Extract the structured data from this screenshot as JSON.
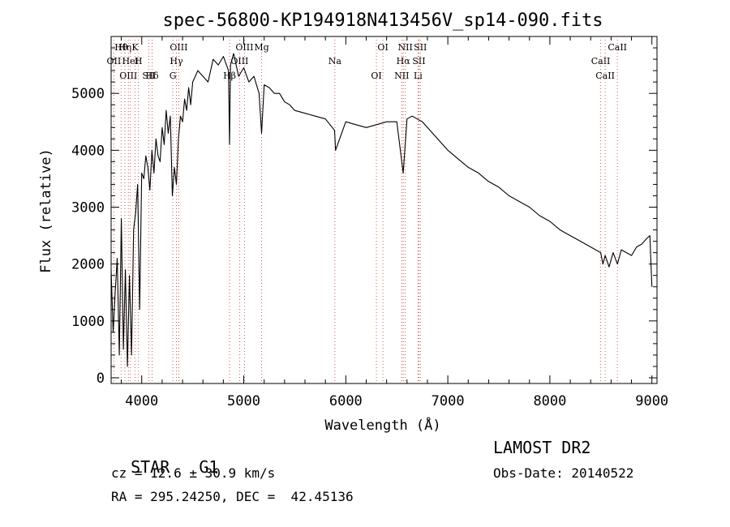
{
  "chart_data": {
    "type": "line",
    "title": "spec-56800-KP194918N413456V_sp14-090.fits",
    "xlabel": "Wavelength (Å)",
    "ylabel": "Flux (relative)",
    "xlim": [
      3700,
      9050
    ],
    "ylim": [
      -100,
      6000
    ],
    "xticks": [
      4000,
      5000,
      6000,
      7000,
      8000,
      9000
    ],
    "yticks": [
      0,
      1000,
      2000,
      3000,
      4000,
      5000
    ],
    "grid": false,
    "line_color": "#000000",
    "marker_color": "#d9534f",
    "series": [
      {
        "x": [
          3700,
          3720,
          3740,
          3760,
          3780,
          3800,
          3820,
          3840,
          3860,
          3880,
          3900,
          3920,
          3940,
          3960,
          3980,
          4000,
          4020,
          4040,
          4060,
          4080,
          4100,
          4120,
          4140,
          4160,
          4180,
          4200,
          4220,
          4240,
          4260,
          4280,
          4300,
          4320,
          4340,
          4360,
          4380,
          4400,
          4420,
          4440,
          4460,
          4480,
          4500,
          4550,
          4600,
          4650,
          4700,
          4750,
          4800,
          4850,
          4861,
          4870,
          4900,
          4950,
          5000,
          5050,
          5100,
          5150,
          5175,
          5200,
          5250,
          5300,
          5350,
          5400,
          5450,
          5500,
          5600,
          5700,
          5800,
          5890,
          5900,
          6000,
          6100,
          6200,
          6300,
          6400,
          6500,
          6563,
          6600,
          6650,
          6700,
          6750,
          6800,
          6900,
          7000,
          7100,
          7200,
          7300,
          7400,
          7500,
          7600,
          7700,
          7800,
          7900,
          8000,
          8100,
          8200,
          8300,
          8400,
          8498,
          8520,
          8542,
          8580,
          8620,
          8662,
          8700,
          8750,
          8800,
          8850,
          8900,
          8950,
          8980,
          9000
        ],
        "y": [
          1900,
          800,
          1500,
          2100,
          400,
          2800,
          500,
          1900,
          200,
          1800,
          400,
          2600,
          2900,
          3400,
          1200,
          3600,
          3500,
          3900,
          3700,
          3300,
          4000,
          3600,
          4200,
          3900,
          3800,
          4400,
          4100,
          4700,
          4300,
          4600,
          3200,
          3700,
          3400,
          4200,
          4600,
          4500,
          4900,
          4700,
          5100,
          4800,
          5200,
          5400,
          5300,
          5200,
          5600,
          5500,
          5650,
          5400,
          4100,
          5500,
          5700,
          5300,
          5450,
          5200,
          5300,
          5000,
          4300,
          5150,
          5100,
          5000,
          5000,
          4850,
          4800,
          4700,
          4650,
          4600,
          4550,
          4350,
          4000,
          4500,
          4450,
          4400,
          4450,
          4500,
          4500,
          3600,
          4550,
          4600,
          4550,
          4500,
          4400,
          4200,
          4000,
          3850,
          3700,
          3600,
          3450,
          3350,
          3200,
          3100,
          3000,
          2850,
          2750,
          2600,
          2500,
          2400,
          2300,
          2200,
          2000,
          2150,
          1950,
          2200,
          2000,
          2250,
          2200,
          2150,
          2300,
          2350,
          2450,
          2500,
          1600
        ]
      }
    ],
    "lines": [
      {
        "label": "Hθ",
        "wl": 3798
      },
      {
        "label": "OII",
        "wl": 3727
      },
      {
        "label": "OIII",
        "wl": 3869
      },
      {
        "label": "K",
        "wl": 3934
      },
      {
        "label": "HeI",
        "wl": 3889
      },
      {
        "label": "SII",
        "wl": 4070
      },
      {
        "label": "Hη",
        "wl": 3835
      },
      {
        "label": "H",
        "wl": 3968
      },
      {
        "label": "Hδ",
        "wl": 4102
      },
      {
        "label": "OIII",
        "wl": 4363
      },
      {
        "label": "Hγ",
        "wl": 4340
      },
      {
        "label": "G",
        "wl": 4305
      },
      {
        "label": "OIII",
        "wl": 5007
      },
      {
        "label": "OIII",
        "wl": 4959
      },
      {
        "label": "Hβ",
        "wl": 4861
      },
      {
        "label": "Mg",
        "wl": 5175
      },
      {
        "label": "Na",
        "wl": 5893
      },
      {
        "label": "OI",
        "wl": 6300
      },
      {
        "label": "OI",
        "wl": 6364
      },
      {
        "label": "Hα",
        "wl": 6563
      },
      {
        "label": "NII",
        "wl": 6548
      },
      {
        "label": "NII",
        "wl": 6583
      },
      {
        "label": "SII",
        "wl": 6717
      },
      {
        "label": "Li",
        "wl": 6708
      },
      {
        "label": "SII",
        "wl": 6731
      },
      {
        "label": "CaII",
        "wl": 8498
      },
      {
        "label": "CaII",
        "wl": 8542
      },
      {
        "label": "CaII",
        "wl": 8662
      }
    ]
  },
  "info": {
    "class_label": "STAR",
    "subclass": "G1",
    "survey": "LAMOST DR2",
    "cz": "cz = 12.6 ± 30.9 km/s",
    "obs_date": "Obs-Date: 20140522",
    "coords": "RA = 295.24250, DEC =  42.45136"
  }
}
